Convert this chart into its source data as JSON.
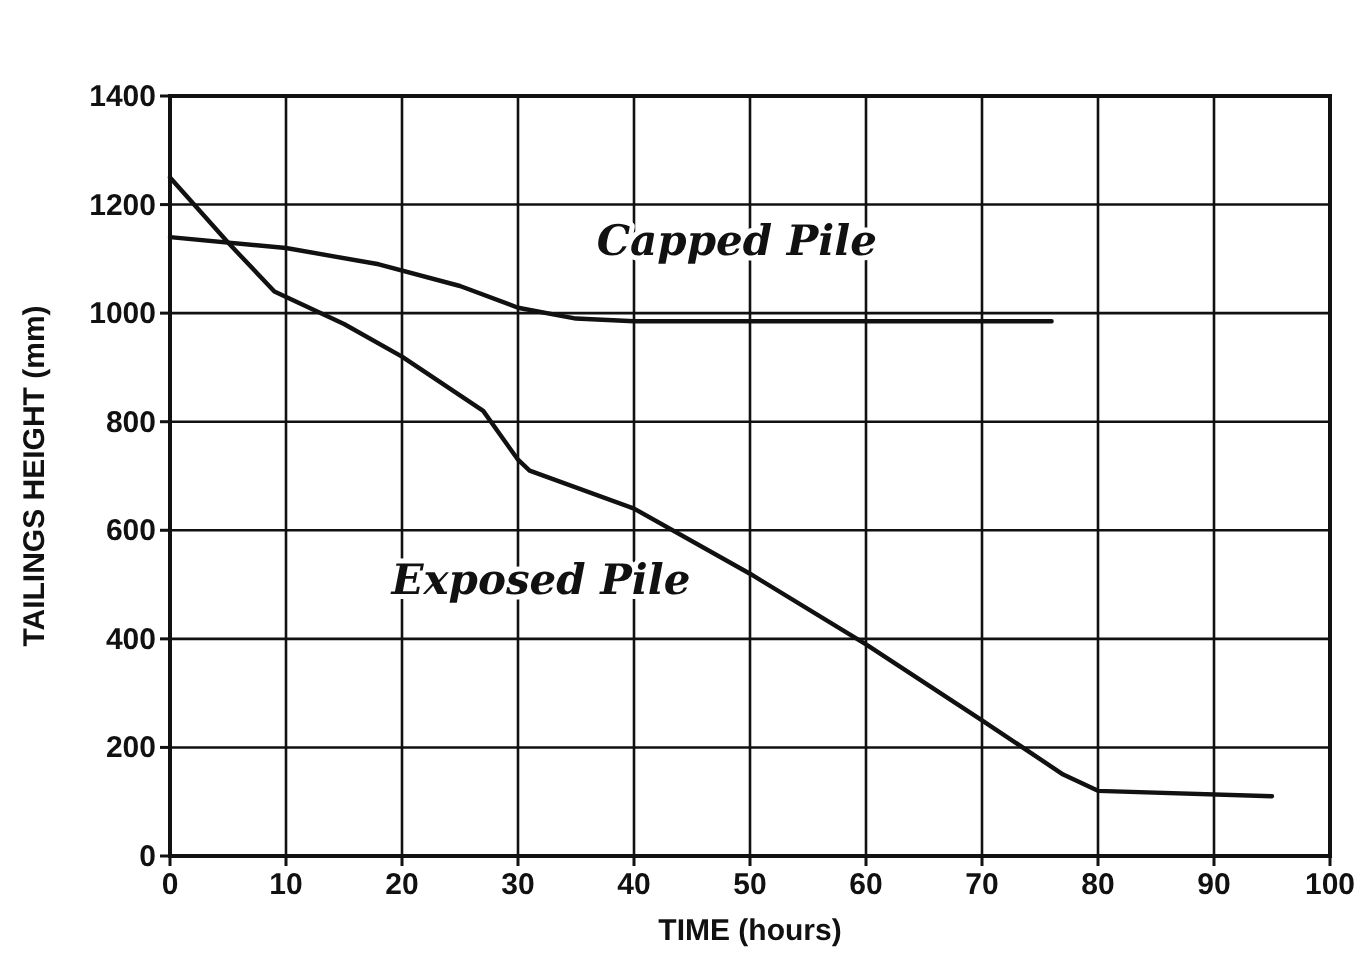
{
  "chart_data": {
    "type": "line",
    "xlabel": "TIME (hours)",
    "ylabel": "TAILINGS HEIGHT (mm)",
    "xlim": [
      0,
      100
    ],
    "xticks": [
      0,
      10,
      20,
      30,
      40,
      50,
      60,
      70,
      80,
      90,
      100
    ],
    "ylim": [
      0,
      1400
    ],
    "yticks": [
      0,
      200,
      400,
      600,
      800,
      1000,
      1200,
      1400
    ],
    "grid": true,
    "marker": "none",
    "line_style": "solid",
    "series": [
      {
        "name": "Capped Pile",
        "color": "#111111",
        "x": [
          0,
          10,
          18,
          25,
          30,
          35,
          40,
          76
        ],
        "values": [
          1140,
          1120,
          1090,
          1050,
          1010,
          990,
          985,
          985
        ]
      },
      {
        "name": "Exposed Pile",
        "color": "#111111",
        "x": [
          0,
          5,
          9,
          15,
          20,
          27,
          30,
          31,
          40,
          50,
          60,
          70,
          77,
          80,
          95
        ],
        "values": [
          1250,
          1130,
          1040,
          980,
          920,
          820,
          730,
          710,
          640,
          520,
          390,
          250,
          150,
          120,
          110
        ]
      }
    ]
  }
}
